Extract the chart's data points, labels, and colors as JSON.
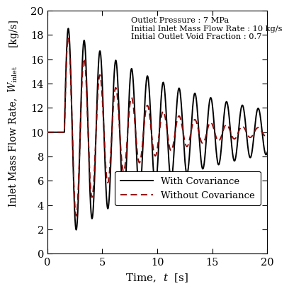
{
  "title": "",
  "xlabel_main": "Time,",
  "xlabel_var": "t",
  "xlabel_unit": "[s]",
  "ylabel_top": "[kg/s]",
  "ylabel_mid": "W_inlet",
  "ylabel_bot": "Inlet Mass Flow Rate,",
  "xlim": [
    0,
    20
  ],
  "ylim": [
    0,
    20
  ],
  "xticks": [
    0,
    5,
    10,
    15,
    20
  ],
  "yticks": [
    0,
    2,
    4,
    6,
    8,
    10,
    12,
    14,
    16,
    18,
    20
  ],
  "annotation_lines": [
    "Outlet Pressure : 7 MPa",
    "Initial Inlet Mass Flow Rate : 10 kg/s",
    "Initial Outlet Void Fraction : 0.7"
  ],
  "legend_with": "With Covariance",
  "legend_without": "Without Covariance",
  "color_with": "#000000",
  "color_without": "#8B0000",
  "background_color": "#ffffff",
  "signal_with": {
    "t_step": 1.55,
    "initial_value": 10.0,
    "amplitude": 8.8,
    "frequency": 0.695,
    "damping": 0.085
  },
  "signal_without": {
    "t_step": 1.55,
    "initial_value": 10.0,
    "amplitude": 8.3,
    "frequency": 0.695,
    "damping": 0.175
  }
}
